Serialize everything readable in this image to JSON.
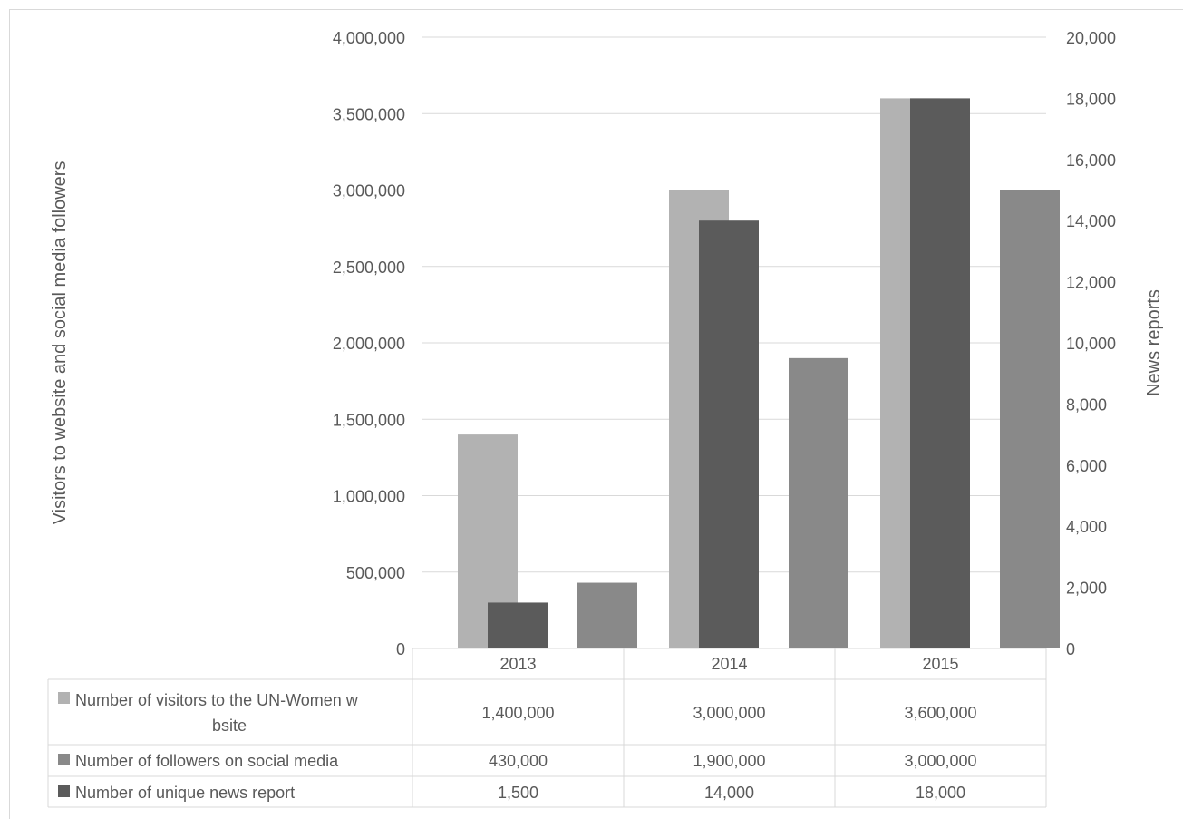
{
  "chart_data": {
    "type": "bar",
    "categories": [
      "2013",
      "2014",
      "2015"
    ],
    "y_left": {
      "label": "Visitors to website and social media followers",
      "ylim": [
        0,
        4000000
      ],
      "ticks": [
        "0",
        "500,000",
        "1,000,000",
        "1,500,000",
        "2,000,000",
        "2,500,000",
        "3,000,000",
        "3,500,000",
        "4,000,000"
      ]
    },
    "y_right": {
      "label": "News reports",
      "ylim": [
        0,
        20000
      ],
      "ticks": [
        "0",
        "2,000",
        "4,000",
        "6,000",
        "8,000",
        "10,000",
        "12,000",
        "14,000",
        "16,000",
        "18,000",
        "20,000"
      ]
    },
    "grid": true,
    "legend": "data-table-below",
    "series": [
      {
        "name": "Number of visitors to the UN-Women website",
        "axis": "left",
        "color": "#b2b2b2",
        "values": [
          1400000,
          3000000,
          3600000
        ],
        "labels": [
          "1,400,000",
          "3,000,000",
          "3,600,000"
        ]
      },
      {
        "name": "Number of followers on social media",
        "axis": "left",
        "color": "#898989",
        "values": [
          430000,
          1900000,
          3000000
        ],
        "labels": [
          "430,000",
          "1,900,000",
          "3,000,000"
        ]
      },
      {
        "name": "Number of unique news report",
        "axis": "right",
        "color": "#5b5b5b",
        "values": [
          1500,
          14000,
          18000
        ],
        "labels": [
          "1,500",
          "14,000",
          "18,000"
        ]
      }
    ]
  }
}
